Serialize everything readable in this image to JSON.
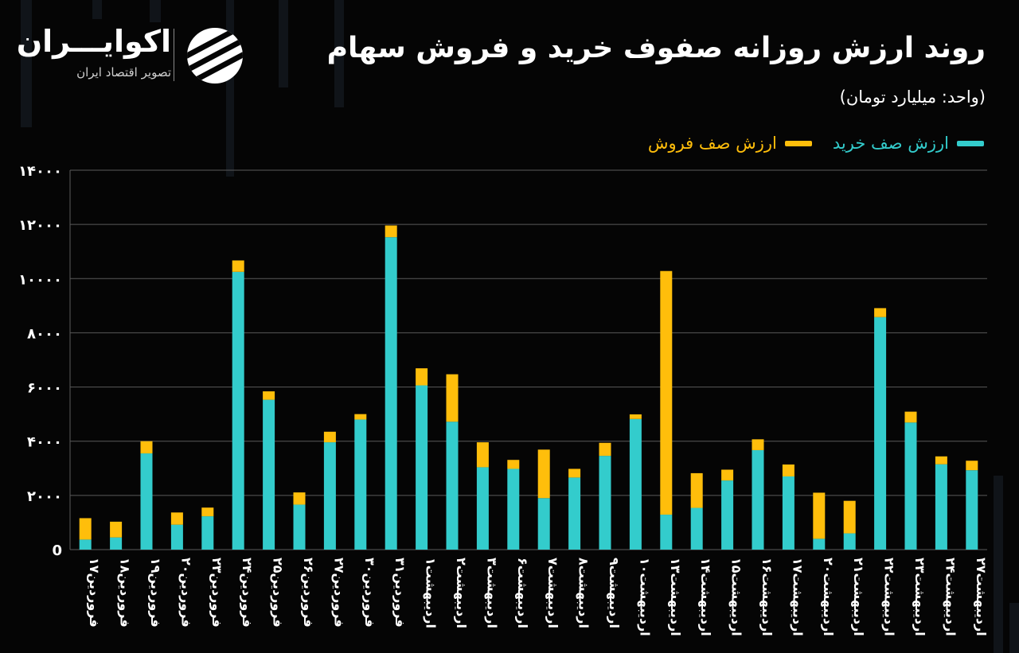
{
  "header": {
    "title": "روند ارزش روزانه صفوف خرید و فروش سهام",
    "unit": "(واحد: میلیارد تومان)"
  },
  "logo": {
    "name": "اکوایـــران",
    "subtitle": "تصویر اقتصاد ایران",
    "icon": "ecoiran-logo-icon"
  },
  "colors": {
    "buy": "#33cccc",
    "sell": "#ffbe0b",
    "grid": "#5a5a5a",
    "background": "#050505"
  },
  "chart_data": {
    "type": "bar",
    "stacked": true,
    "title": "روند ارزش روزانه صفوف خرید و فروش سهام",
    "ylabel": "(واحد: میلیارد تومان)",
    "xlabel": "",
    "ylim": [
      0,
      14000
    ],
    "yticks": [
      0,
      2000,
      4000,
      6000,
      8000,
      10000,
      12000,
      14000
    ],
    "ytick_labels": [
      "0",
      "۲۰۰۰",
      "۴۰۰۰",
      "۶۰۰۰",
      "۸۰۰۰",
      "۱۰۰۰۰",
      "۱۲۰۰۰",
      "۱۴۰۰۰"
    ],
    "grid": true,
    "legend_position": "top-right",
    "categories": [
      "فروردین۱۷",
      "فروردین۱۸",
      "فروردین۱۹",
      "فروردین۲۰",
      "فروردین۲۳",
      "فروردین۲۴",
      "فروردین۲۵",
      "فروردین۲۶",
      "فروردین۲۷",
      "فروردین۳۰",
      "فروردین۳۱",
      "اردیبهشت۱",
      "اردیبهشت۲",
      "اردیبهشت۳",
      "اردیبهشت۶",
      "اردیبهشت۷",
      "اردیبهشت۸",
      "اردیبهشت۹",
      "اردیبهشت۱۰",
      "اردیبهشت۱۳",
      "اردیبهشت۱۴",
      "اردیبهشت۱۵",
      "اردیبهشت۱۶",
      "اردیبهشت۱۷",
      "اردیبهشت۲۰",
      "اردیبهشت۲۱",
      "اردیبهشت۲۲",
      "اردیبهشت۲۳",
      "اردیبهشت۲۴",
      "اردیبهشت۲۷"
    ],
    "series": [
      {
        "name": "ارزش صف خرید",
        "color": "#33cccc",
        "values": [
          370,
          450,
          3550,
          920,
          1230,
          10250,
          5530,
          1660,
          3960,
          4800,
          11530,
          6060,
          4720,
          3040,
          2980,
          1900,
          2660,
          3460,
          4820,
          1290,
          1540,
          2550,
          3670,
          2700,
          400,
          600,
          8580,
          4690,
          3150,
          2930
        ]
      },
      {
        "name": "ارزش صف فروش",
        "color": "#ffbe0b",
        "values": [
          790,
          580,
          450,
          450,
          320,
          420,
          310,
          450,
          390,
          200,
          430,
          630,
          1750,
          920,
          330,
          1790,
          320,
          480,
          170,
          8990,
          1280,
          400,
          400,
          440,
          1700,
          1200,
          330,
          400,
          290,
          350
        ]
      }
    ]
  }
}
